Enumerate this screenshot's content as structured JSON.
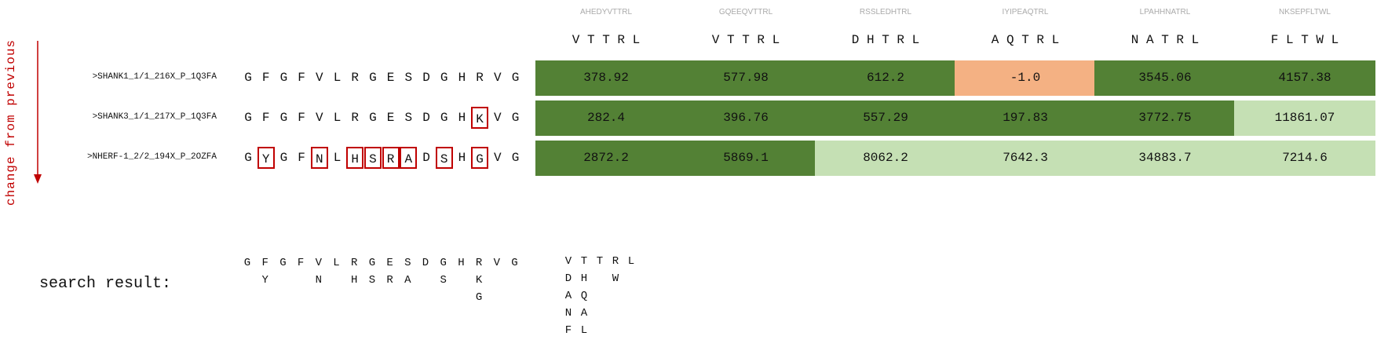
{
  "change_label": "change from previous",
  "peptides": [
    {
      "full": "AHEDYVTTRL",
      "short": "V T T R L"
    },
    {
      "full": "GQEEQVTTRL",
      "short": "V T T R L"
    },
    {
      "full": "RSSLEDHTRL",
      "short": "D H T R L"
    },
    {
      "full": "IYIPEAQTRL",
      "short": "A Q T R L"
    },
    {
      "full": "LPAHHNATRL",
      "short": "N A T R L"
    },
    {
      "full": "NKSEPFLTWL",
      "short": "F L T W L"
    }
  ],
  "rows": [
    {
      "label": ">SHANK1_1/1_216X_P_1Q3FA",
      "seq": [
        "G",
        "F",
        "G",
        "F",
        "V",
        "L",
        "R",
        "G",
        "E",
        "S",
        "D",
        "G",
        "H",
        "R",
        "V",
        "G"
      ],
      "changed": [],
      "values": [
        "378.92",
        "577.98",
        "612.2",
        "-1.0",
        "3545.06",
        "4157.38"
      ]
    },
    {
      "label": ">SHANK3_1/1_217X_P_1Q3FA",
      "seq": [
        "G",
        "F",
        "G",
        "F",
        "V",
        "L",
        "R",
        "G",
        "E",
        "S",
        "D",
        "G",
        "H",
        "K",
        "V",
        "G"
      ],
      "changed": [
        13
      ],
      "values": [
        "282.4",
        "396.76",
        "557.29",
        "197.83",
        "3772.75",
        "11861.07"
      ]
    },
    {
      "label": ">NHERF-1_2/2_194X_P_2OZFA",
      "seq": [
        "G",
        "Y",
        "G",
        "F",
        "N",
        "L",
        "H",
        "S",
        "R",
        "A",
        "D",
        "S",
        "H",
        "G",
        "V",
        "G"
      ],
      "changed": [
        1,
        4,
        6,
        7,
        8,
        9,
        11,
        13
      ],
      "values": [
        "2872.2",
        "5869.1",
        "8062.2",
        "7642.3",
        "34883.7",
        "7214.6"
      ]
    }
  ],
  "cell_status": [
    [
      "dark",
      "dark",
      "dark",
      "orange",
      "dark",
      "dark"
    ],
    [
      "dark",
      "dark",
      "dark",
      "dark",
      "dark",
      "light"
    ],
    [
      "dark",
      "dark",
      "light",
      "light",
      "light",
      "light"
    ]
  ],
  "colors": {
    "dark": "#538135",
    "light": "#c5e0b4",
    "orange": "#f4b183",
    "accent": "#c00000"
  },
  "search": {
    "label": "search result:",
    "seq_columns": [
      [
        "G"
      ],
      [
        "F",
        "Y"
      ],
      [
        "G"
      ],
      [
        "F"
      ],
      [
        "V",
        "N"
      ],
      [
        "L"
      ],
      [
        "R",
        "H"
      ],
      [
        "G",
        "S"
      ],
      [
        "E",
        "R"
      ],
      [
        "S",
        "A"
      ],
      [
        "D"
      ],
      [
        "G",
        "S"
      ],
      [
        "H"
      ],
      [
        "R",
        "K",
        "G"
      ],
      [
        "V"
      ],
      [
        "G"
      ]
    ],
    "pep_columns": [
      [
        "V",
        "D",
        "A",
        "N",
        "F"
      ],
      [
        "T",
        "H",
        "Q",
        "A",
        "L"
      ],
      [
        "T"
      ],
      [
        "R",
        "W"
      ],
      [
        "L"
      ]
    ]
  }
}
